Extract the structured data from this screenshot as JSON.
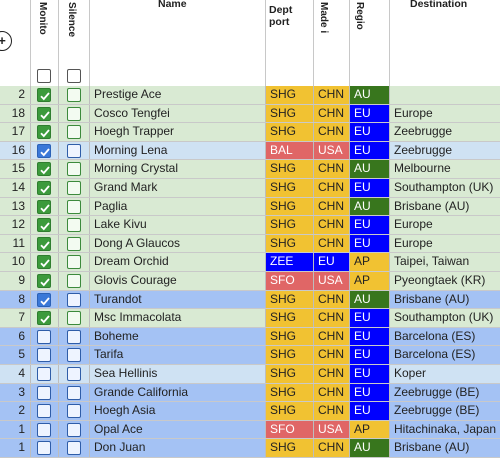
{
  "headers": {
    "monitor": "Monito",
    "silence": "Silence",
    "name": "Name",
    "dept_port": "Dept port",
    "made_in": "Made i",
    "region": "Regio",
    "destination": "Destination"
  },
  "colors": {
    "green_row": "#d9ead3",
    "blue_row": "#a4c2f4",
    "light_blue_row": "#cfe2f3",
    "dept_orange": "#f1c232",
    "dept_red": "#e06666",
    "dept_blue": "#0000ff",
    "region_green": "#38761d",
    "region_blue": "#0000ff",
    "region_orange": "#f1c232"
  },
  "rows": [
    {
      "num": "2",
      "monitor": true,
      "silence": false,
      "name": "Prestige Ace",
      "dept": "SHG",
      "made": "CHN",
      "region": "AU",
      "dest": "",
      "theme": "green"
    },
    {
      "num": "18",
      "monitor": true,
      "silence": false,
      "name": "Cosco Tengfei",
      "dept": "SHG",
      "made": "CHN",
      "region": "EU",
      "dest": "Europe",
      "theme": "green"
    },
    {
      "num": "17",
      "monitor": true,
      "silence": false,
      "name": "Hoegh Trapper",
      "dept": "SHG",
      "made": "CHN",
      "region": "EU",
      "dest": "Zeebrugge",
      "theme": "green"
    },
    {
      "num": "16",
      "monitor": true,
      "silence": false,
      "name": "Morning Lena",
      "dept": "BAL",
      "made": "USA",
      "region": "EU",
      "dest": "Zeebrugge",
      "theme": "lightblue"
    },
    {
      "num": "15",
      "monitor": true,
      "silence": false,
      "name": "Morning Crystal",
      "dept": "SHG",
      "made": "CHN",
      "region": "AU",
      "dest": "Melbourne",
      "theme": "green"
    },
    {
      "num": "14",
      "monitor": true,
      "silence": false,
      "name": "Grand Mark",
      "dept": "SHG",
      "made": "CHN",
      "region": "EU",
      "dest": "Southampton (UK)",
      "theme": "green"
    },
    {
      "num": "13",
      "monitor": true,
      "silence": false,
      "name": "Paglia",
      "dept": "SHG",
      "made": "CHN",
      "region": "AU",
      "dest": "Brisbane (AU)",
      "theme": "green"
    },
    {
      "num": "12",
      "monitor": true,
      "silence": false,
      "name": "Lake Kivu",
      "dept": "SHG",
      "made": "CHN",
      "region": "EU",
      "dest": "Europe",
      "theme": "green"
    },
    {
      "num": "11",
      "monitor": true,
      "silence": false,
      "name": "Dong A Glaucos",
      "dept": "SHG",
      "made": "CHN",
      "region": "EU",
      "dest": "Europe",
      "theme": "green"
    },
    {
      "num": "10",
      "monitor": true,
      "silence": false,
      "name": "Dream Orchid",
      "dept": "ZEE",
      "made": "EU",
      "region": "AP",
      "dest": "Taipei, Taiwan",
      "theme": "green"
    },
    {
      "num": "9",
      "monitor": true,
      "silence": false,
      "name": "Glovis Courage",
      "dept": "SFO",
      "made": "USA",
      "region": "AP",
      "dest": "Pyeongtaek (KR)",
      "theme": "green"
    },
    {
      "num": "8",
      "monitor": true,
      "silence": false,
      "name": "Turandot",
      "dept": "SHG",
      "made": "CHN",
      "region": "AU",
      "dest": "Brisbane (AU)",
      "theme": "blue"
    },
    {
      "num": "7",
      "monitor": true,
      "silence": false,
      "name": "Msc Immacolata",
      "dept": "SHG",
      "made": "CHN",
      "region": "EU",
      "dest": "Southampton (UK)",
      "theme": "green"
    },
    {
      "num": "6",
      "monitor": false,
      "silence": false,
      "name": "Boheme",
      "dept": "SHG",
      "made": "CHN",
      "region": "EU",
      "dest": "Barcelona (ES)",
      "theme": "blue"
    },
    {
      "num": "5",
      "monitor": false,
      "silence": false,
      "name": "Tarifa",
      "dept": "SHG",
      "made": "CHN",
      "region": "EU",
      "dest": "Barcelona (ES)",
      "theme": "blue"
    },
    {
      "num": "4",
      "monitor": false,
      "silence": false,
      "name": "Sea Hellinis",
      "dept": "SHG",
      "made": "CHN",
      "region": "EU",
      "dest": "Koper",
      "theme": "lightblue"
    },
    {
      "num": "3",
      "monitor": false,
      "silence": false,
      "name": "Grande California",
      "dept": "SHG",
      "made": "CHN",
      "region": "EU",
      "dest": "Zeebrugge (BE)",
      "theme": "blue"
    },
    {
      "num": "2",
      "monitor": false,
      "silence": false,
      "name": "Hoegh Asia",
      "dept": "SHG",
      "made": "CHN",
      "region": "EU",
      "dest": "Zeebrugge (BE)",
      "theme": "blue"
    },
    {
      "num": "1",
      "monitor": false,
      "silence": false,
      "name": "Opal Ace",
      "dept": "SFO",
      "made": "USA",
      "region": "AP",
      "dest": "Hitachinaka, Japan",
      "theme": "blue"
    },
    {
      "num": "1",
      "monitor": false,
      "silence": false,
      "name": "Don Juan",
      "dept": "SHG",
      "made": "CHN",
      "region": "AU",
      "dest": "Brisbane (AU)",
      "theme": "blue"
    }
  ]
}
